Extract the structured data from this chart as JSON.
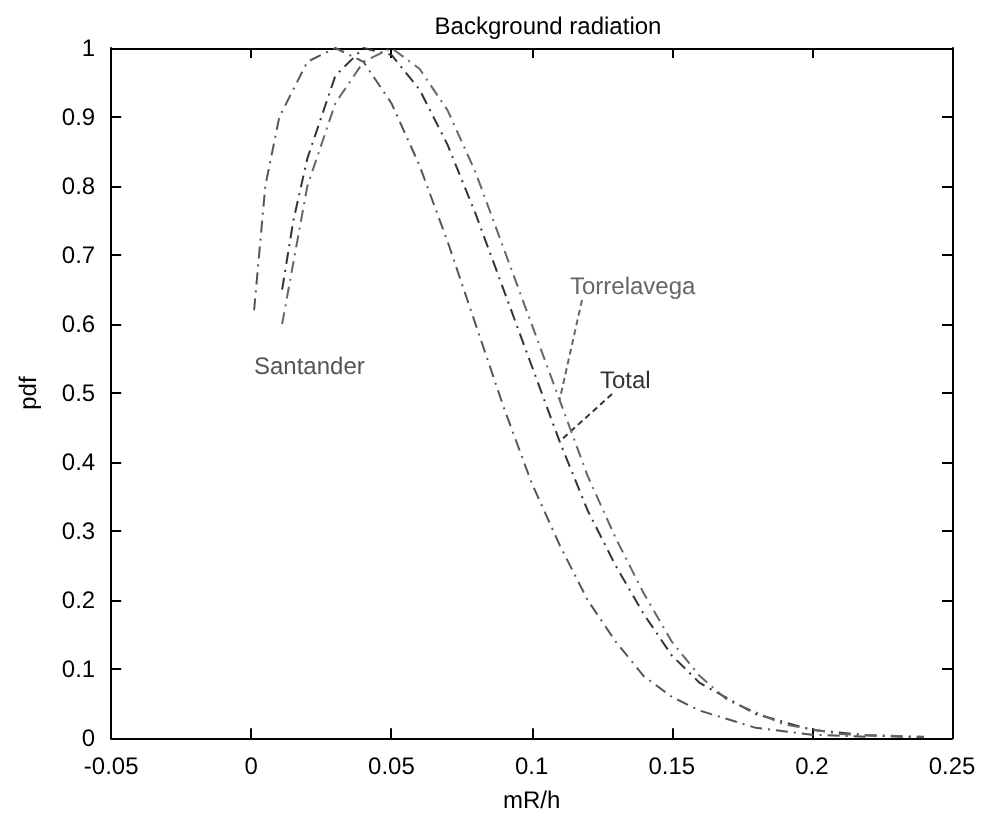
{
  "chart_data": {
    "type": "line",
    "title": "Background radiation",
    "xlabel": "mR/h",
    "ylabel": "pdf",
    "xlim": [
      -0.05,
      0.25
    ],
    "xticks": [
      -0.05,
      0,
      0.05,
      0.1,
      0.15,
      0.2,
      0.25
    ],
    "ylim": [
      0,
      1
    ],
    "yticks": [
      0,
      0.1,
      0.2,
      0.3,
      0.4,
      0.5,
      0.6,
      0.7,
      0.8,
      0.9,
      1
    ],
    "grid": false,
    "marker": "none",
    "line_style": "dashed",
    "series": [
      {
        "name": "Santander",
        "color": "#555555",
        "x": [
          0.001,
          0.005,
          0.01,
          0.02,
          0.03,
          0.04,
          0.05,
          0.06,
          0.07,
          0.08,
          0.09,
          0.1,
          0.11,
          0.12,
          0.13,
          0.14,
          0.15,
          0.16,
          0.18,
          0.2,
          0.22
        ],
        "values": [
          0.62,
          0.8,
          0.9,
          0.98,
          1.0,
          0.98,
          0.92,
          0.83,
          0.72,
          0.6,
          0.48,
          0.37,
          0.28,
          0.2,
          0.14,
          0.09,
          0.06,
          0.04,
          0.015,
          0.005,
          0.002
        ]
      },
      {
        "name": "Total",
        "color": "#333333",
        "x": [
          0.011,
          0.015,
          0.02,
          0.03,
          0.04,
          0.05,
          0.06,
          0.07,
          0.08,
          0.09,
          0.1,
          0.11,
          0.12,
          0.13,
          0.14,
          0.15,
          0.16,
          0.18,
          0.2,
          0.22,
          0.24
        ],
        "values": [
          0.65,
          0.75,
          0.84,
          0.96,
          1.0,
          0.99,
          0.94,
          0.86,
          0.76,
          0.65,
          0.54,
          0.43,
          0.33,
          0.25,
          0.18,
          0.12,
          0.08,
          0.035,
          0.012,
          0.004,
          0.001
        ]
      },
      {
        "name": "Torrelavega",
        "color": "#666666",
        "x": [
          0.011,
          0.02,
          0.03,
          0.04,
          0.05,
          0.06,
          0.07,
          0.08,
          0.09,
          0.1,
          0.11,
          0.12,
          0.13,
          0.14,
          0.15,
          0.16,
          0.17,
          0.19,
          0.21,
          0.24
        ],
        "values": [
          0.6,
          0.8,
          0.92,
          0.98,
          1.0,
          0.97,
          0.91,
          0.82,
          0.71,
          0.6,
          0.49,
          0.38,
          0.29,
          0.21,
          0.14,
          0.09,
          0.055,
          0.02,
          0.006,
          0.002
        ]
      }
    ]
  }
}
